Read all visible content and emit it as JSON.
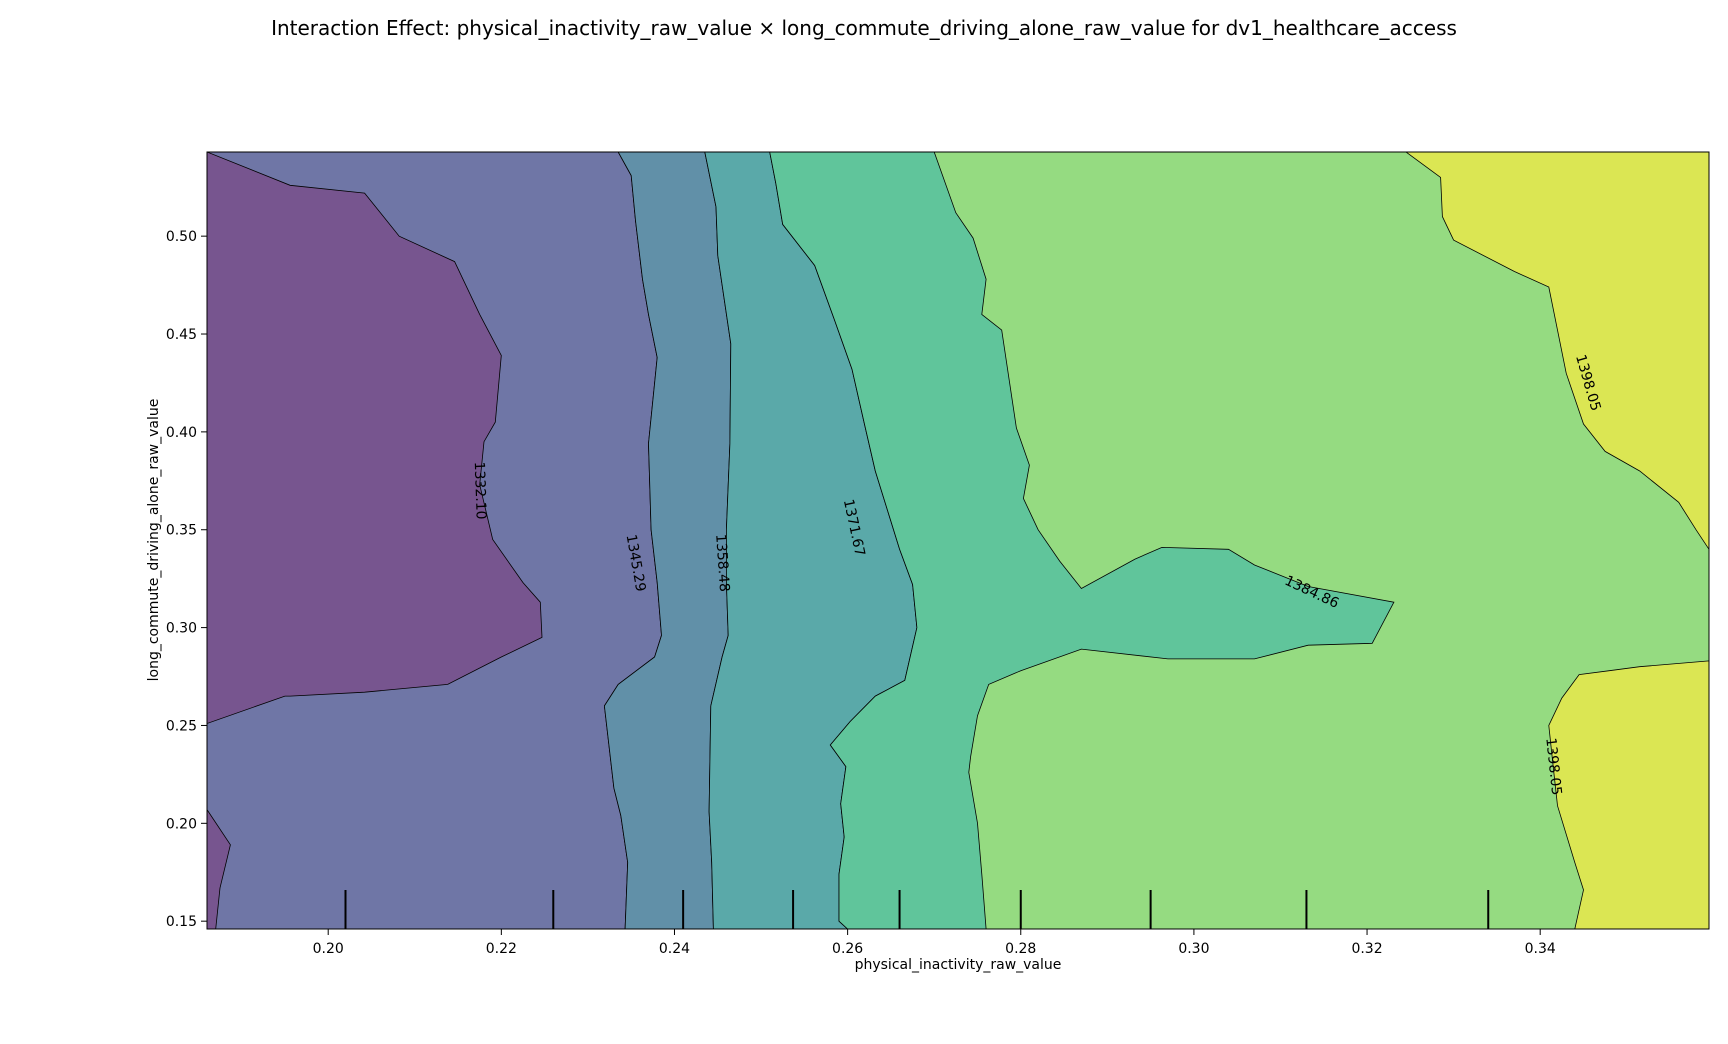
{
  "chart_data": {
    "type": "contour",
    "title": "Interaction Effect: physical_inactivity_raw_value × long_commute_driving_alone_raw_value for dv1_healthcare_access",
    "xlabel": "physical_inactivity_raw_value",
    "ylabel": "long_commute_driving_alone_raw_value",
    "xlim": [
      0.186,
      0.3595
    ],
    "ylim": [
      0.146,
      0.543
    ],
    "x_ticks": [
      "0.20",
      "0.22",
      "0.24",
      "0.26",
      "0.28",
      "0.30",
      "0.32",
      "0.34"
    ],
    "y_ticks": [
      "0.15",
      "0.20",
      "0.25",
      "0.30",
      "0.35",
      "0.40",
      "0.45",
      "0.50"
    ],
    "contour_levels": [
      {
        "value": 1332.1,
        "label": "1332.10",
        "label_at": [
          0.2175,
          0.37
        ]
      },
      {
        "value": 1345.29,
        "label": "1345.29",
        "label_at": [
          0.2355,
          0.333
        ]
      },
      {
        "value": 1358.48,
        "label": "1358.48",
        "label_at": [
          0.2455,
          0.333
        ]
      },
      {
        "value": 1371.67,
        "label": "1371.67",
        "label_at": [
          0.2607,
          0.351
        ]
      },
      {
        "value": 1384.86,
        "label": "1384.86",
        "label_at": [
          0.3136,
          0.318
        ]
      },
      {
        "value": 1398.05,
        "label": "1398.05",
        "label_at": [
          0.3455,
          0.425
        ]
      },
      {
        "value": 1398.05,
        "label": "1398.05",
        "label_at": [
          0.3415,
          0.229
        ]
      }
    ],
    "band_colors": [
      "#77558f",
      "#6f76a6",
      "#6190a8",
      "#5aa9a9",
      "#60c59b",
      "#95db81",
      "#dbe653"
    ],
    "rug_x": [
      0.202,
      0.226,
      0.241,
      0.2537,
      0.266,
      0.28,
      0.295,
      0.313,
      0.334
    ],
    "regions": [
      {
        "band": 0,
        "points": [
          [
            0.186,
            0.543
          ],
          [
            0.1956,
            0.526
          ],
          [
            0.2042,
            0.522
          ],
          [
            0.2082,
            0.5
          ],
          [
            0.2146,
            0.487
          ],
          [
            0.2175,
            0.46
          ],
          [
            0.22,
            0.439
          ],
          [
            0.2193,
            0.405
          ],
          [
            0.218,
            0.395
          ],
          [
            0.2175,
            0.373
          ],
          [
            0.219,
            0.345
          ],
          [
            0.2225,
            0.323
          ],
          [
            0.2245,
            0.313
          ],
          [
            0.2247,
            0.295
          ],
          [
            0.22,
            0.285
          ],
          [
            0.2138,
            0.271
          ],
          [
            0.2042,
            0.267
          ],
          [
            0.1956,
            0.265
          ],
          [
            0.195,
            0.265
          ],
          [
            0.186,
            0.251
          ]
        ]
      },
      {
        "band": 0,
        "points": [
          [
            0.186,
            0.207
          ],
          [
            0.1887,
            0.189
          ],
          [
            0.1875,
            0.167
          ],
          [
            0.187,
            0.146
          ],
          [
            0.186,
            0.146
          ]
        ]
      },
      {
        "band": 2,
        "points": [
          [
            0.2335,
            0.543
          ],
          [
            0.2435,
            0.543
          ],
          [
            0.2448,
            0.515
          ],
          [
            0.245,
            0.49
          ],
          [
            0.2465,
            0.445
          ],
          [
            0.2464,
            0.394
          ],
          [
            0.246,
            0.35
          ],
          [
            0.246,
            0.323
          ],
          [
            0.2462,
            0.296
          ],
          [
            0.2455,
            0.285
          ],
          [
            0.2442,
            0.26
          ],
          [
            0.244,
            0.206
          ],
          [
            0.2443,
            0.18
          ],
          [
            0.2445,
            0.146
          ],
          [
            0.2343,
            0.146
          ],
          [
            0.2346,
            0.18
          ],
          [
            0.2338,
            0.204
          ],
          [
            0.233,
            0.218
          ],
          [
            0.2319,
            0.26
          ],
          [
            0.2335,
            0.271
          ],
          [
            0.2377,
            0.285
          ],
          [
            0.2385,
            0.296
          ],
          [
            0.238,
            0.323
          ],
          [
            0.2373,
            0.35
          ],
          [
            0.237,
            0.394
          ],
          [
            0.238,
            0.438
          ],
          [
            0.237,
            0.46
          ],
          [
            0.2363,
            0.478
          ],
          [
            0.2355,
            0.508
          ],
          [
            0.235,
            0.531
          ]
        ]
      },
      {
        "band": 3,
        "points": [
          [
            0.2435,
            0.543
          ],
          [
            0.251,
            0.543
          ],
          [
            0.2517,
            0.527
          ],
          [
            0.2525,
            0.506
          ],
          [
            0.2562,
            0.485
          ],
          [
            0.2585,
            0.457
          ],
          [
            0.2605,
            0.432
          ],
          [
            0.262,
            0.403
          ],
          [
            0.2632,
            0.38
          ],
          [
            0.266,
            0.34
          ],
          [
            0.2675,
            0.322
          ],
          [
            0.268,
            0.3
          ],
          [
            0.2666,
            0.273
          ],
          [
            0.2632,
            0.265
          ],
          [
            0.2603,
            0.252
          ],
          [
            0.258,
            0.24
          ],
          [
            0.2598,
            0.229
          ],
          [
            0.2592,
            0.21
          ],
          [
            0.2596,
            0.193
          ],
          [
            0.259,
            0.174
          ],
          [
            0.259,
            0.15
          ],
          [
            0.26,
            0.146
          ],
          [
            0.2445,
            0.146
          ],
          [
            0.2443,
            0.18
          ],
          [
            0.244,
            0.206
          ],
          [
            0.2442,
            0.26
          ],
          [
            0.2455,
            0.285
          ],
          [
            0.2462,
            0.296
          ],
          [
            0.246,
            0.323
          ],
          [
            0.246,
            0.35
          ],
          [
            0.2464,
            0.394
          ],
          [
            0.2465,
            0.445
          ],
          [
            0.245,
            0.49
          ],
          [
            0.2448,
            0.515
          ]
        ]
      },
      {
        "band": 4,
        "points": [
          [
            0.251,
            0.543
          ],
          [
            0.27,
            0.543
          ],
          [
            0.2725,
            0.512
          ],
          [
            0.2745,
            0.499
          ],
          [
            0.276,
            0.478
          ],
          [
            0.2755,
            0.46
          ],
          [
            0.2778,
            0.452
          ],
          [
            0.2795,
            0.402
          ],
          [
            0.281,
            0.383
          ],
          [
            0.2803,
            0.366
          ],
          [
            0.282,
            0.35
          ],
          [
            0.2845,
            0.334
          ],
          [
            0.287,
            0.32
          ],
          [
            0.2932,
            0.335
          ],
          [
            0.2963,
            0.341
          ],
          [
            0.304,
            0.34
          ],
          [
            0.307,
            0.332
          ],
          [
            0.3132,
            0.321
          ],
          [
            0.3231,
            0.313
          ],
          [
            0.3206,
            0.292
          ],
          [
            0.3132,
            0.291
          ],
          [
            0.307,
            0.284
          ],
          [
            0.297,
            0.284
          ],
          [
            0.287,
            0.289
          ],
          [
            0.28,
            0.278
          ],
          [
            0.2763,
            0.271
          ],
          [
            0.275,
            0.255
          ],
          [
            0.2742,
            0.234
          ],
          [
            0.274,
            0.226
          ],
          [
            0.275,
            0.2
          ],
          [
            0.2755,
            0.174
          ],
          [
            0.276,
            0.146
          ],
          [
            0.26,
            0.146
          ],
          [
            0.259,
            0.15
          ],
          [
            0.259,
            0.174
          ],
          [
            0.2596,
            0.193
          ],
          [
            0.2592,
            0.21
          ],
          [
            0.2598,
            0.229
          ],
          [
            0.258,
            0.24
          ],
          [
            0.2603,
            0.252
          ],
          [
            0.2632,
            0.265
          ],
          [
            0.2666,
            0.273
          ],
          [
            0.268,
            0.3
          ],
          [
            0.2675,
            0.322
          ],
          [
            0.266,
            0.34
          ],
          [
            0.2632,
            0.38
          ],
          [
            0.262,
            0.403
          ],
          [
            0.2605,
            0.432
          ],
          [
            0.2585,
            0.457
          ],
          [
            0.2562,
            0.485
          ],
          [
            0.2525,
            0.506
          ],
          [
            0.2517,
            0.527
          ]
        ]
      },
      {
        "band": 6,
        "points": [
          [
            0.3245,
            0.543
          ],
          [
            0.3595,
            0.543
          ],
          [
            0.3595,
            0.34
          ],
          [
            0.358,
            0.35
          ],
          [
            0.356,
            0.364
          ],
          [
            0.3515,
            0.38
          ],
          [
            0.3475,
            0.39
          ],
          [
            0.345,
            0.404
          ],
          [
            0.343,
            0.43
          ],
          [
            0.342,
            0.452
          ],
          [
            0.341,
            0.474
          ],
          [
            0.337,
            0.482
          ],
          [
            0.33,
            0.498
          ],
          [
            0.3287,
            0.51
          ],
          [
            0.3285,
            0.53
          ]
        ]
      },
      {
        "band": 6,
        "points": [
          [
            0.3595,
            0.283
          ],
          [
            0.3595,
            0.146
          ],
          [
            0.344,
            0.146
          ],
          [
            0.345,
            0.166
          ],
          [
            0.344,
            0.18
          ],
          [
            0.342,
            0.209
          ],
          [
            0.3415,
            0.229
          ],
          [
            0.341,
            0.25
          ],
          [
            0.3425,
            0.264
          ],
          [
            0.3445,
            0.276
          ],
          [
            0.348,
            0.278
          ],
          [
            0.3515,
            0.28
          ]
        ]
      }
    ]
  }
}
